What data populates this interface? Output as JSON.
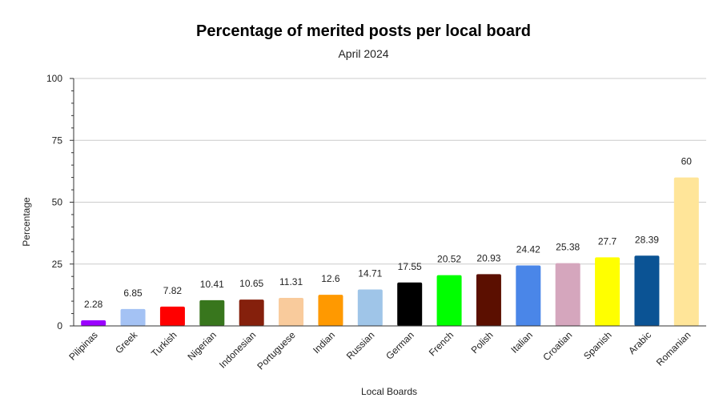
{
  "chart_data": {
    "type": "bar",
    "title": "Percentage of merited posts per local board",
    "subtitle": "April 2024",
    "xlabel": "Local Boards",
    "ylabel": "Percentage",
    "ylim": [
      0,
      100
    ],
    "yticks": [
      "0",
      "25",
      "50",
      "75",
      "100"
    ],
    "grid": true,
    "categories": [
      "Pilipinas",
      "Greek",
      "Turkish",
      "Nigerian",
      "Indonesian",
      "Portuguese",
      "Indian",
      "Russian",
      "German",
      "French",
      "Polish",
      "Italian",
      "Croatian",
      "Spanish",
      "Arabic",
      "Romanian"
    ],
    "values": [
      2.28,
      6.85,
      7.82,
      10.41,
      10.65,
      11.31,
      12.6,
      14.71,
      17.55,
      20.52,
      20.93,
      24.42,
      25.38,
      27.7,
      28.39,
      60
    ],
    "value_labels": [
      "2.28",
      "6.85",
      "7.82",
      "10.41",
      "10.65",
      "11.31",
      "12.6",
      "14.71",
      "17.55",
      "20.52",
      "20.93",
      "24.42",
      "25.38",
      "27.7",
      "28.39",
      "60"
    ],
    "colors": [
      "#9b00ff",
      "#a4c2f4",
      "#ff0000",
      "#38761d",
      "#85200c",
      "#f9cb9c",
      "#ff9900",
      "#9fc5e8",
      "#000000",
      "#00ff00",
      "#5b0f00",
      "#4a86e8",
      "#d5a6bd",
      "#ffff00",
      "#0b5394",
      "#ffe599"
    ]
  }
}
